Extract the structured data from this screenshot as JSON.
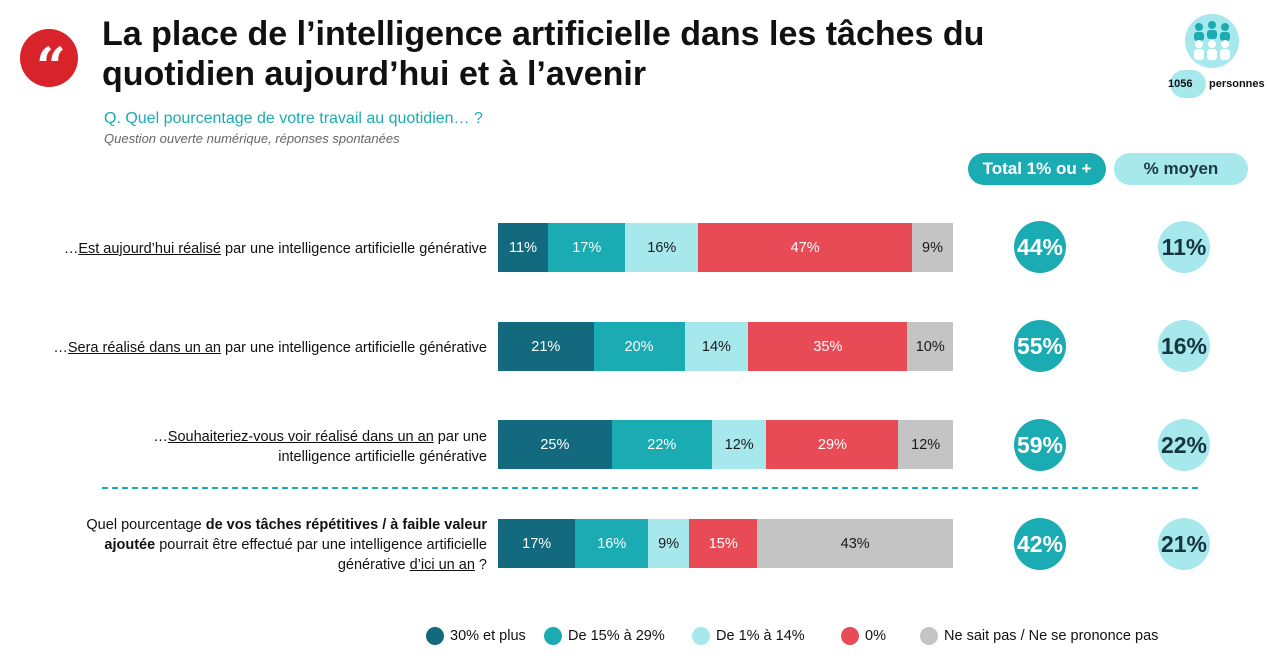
{
  "header": {
    "title": "La place de l’intelligence artificielle dans les tâches du quotidien aujourd’hui et à l’avenir",
    "question": "Q. Quel pourcentage de votre travail au quotidien… ?",
    "note": "Question ouverte numérique, réponses spontanées",
    "sample_count": "1056",
    "sample_label": "personnes"
  },
  "columns": {
    "total": "Total 1% ou +",
    "moyen": "% moyen"
  },
  "rows": [
    {
      "prefix": "…",
      "underlined": "Est aujourd’hui réalisé",
      "suffix": " par une intelligence artificielle générative",
      "total": "44%",
      "moyen": "11%"
    },
    {
      "prefix": "…",
      "underlined": "Sera réalisé dans un an",
      "suffix": " par une intelligence artificielle générative",
      "total": "55%",
      "moyen": "16%"
    },
    {
      "prefix": "…",
      "underlined": "Souhaiteriez-vous voir réalisé dans un an",
      "suffix": " par une intelligence artificielle générative",
      "total": "59%",
      "moyen": "22%"
    },
    {
      "q_a": "Quel pourcentage ",
      "q_b": "de vos tâches répétitives / à faible valeur ajoutée",
      "q_c": " pourrait être effectué par une intelligence artificielle générative ",
      "q_d": "d’ici un an",
      "q_e": " ?",
      "total": "42%",
      "moyen": "21%"
    }
  ],
  "chart_data": {
    "type": "bar",
    "stacked": true,
    "orientation": "horizontal",
    "categories": [
      "…Est aujourd’hui réalisé par une intelligence artificielle générative",
      "…Sera réalisé dans un an par une intelligence artificielle générative",
      "…Souhaiteriez-vous voir réalisé dans un an par une intelligence artificielle générative",
      "Quel pourcentage de vos tâches répétitives / à faible valeur ajoutée pourrait être effectué par une intelligence artificielle générative d’ici un an ?"
    ],
    "series": [
      {
        "name": "30% et plus",
        "color": "#136a7e",
        "values": [
          11,
          21,
          25,
          17
        ]
      },
      {
        "name": "De 15% à 29%",
        "color": "#1aabb3",
        "values": [
          17,
          20,
          22,
          16
        ]
      },
      {
        "name": "De 1% à 14%",
        "color": "#a6e8ec",
        "values": [
          16,
          14,
          12,
          9
        ]
      },
      {
        "name": "0%",
        "color": "#e84b55",
        "values": [
          47,
          35,
          29,
          15
        ]
      },
      {
        "name": "Ne sait pas / Ne se prononce pas",
        "color": "#c4c4c4",
        "values": [
          9,
          10,
          12,
          43
        ]
      }
    ],
    "value_suffix": "%",
    "legend_position": "bottom"
  }
}
